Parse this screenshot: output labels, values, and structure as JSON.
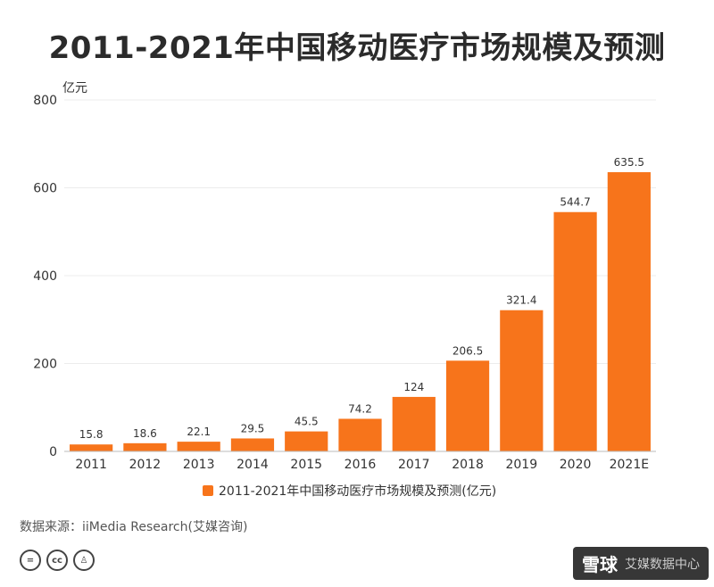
{
  "chart_data": {
    "type": "bar",
    "title": "2011-2021年中国移动医疗市场规模及预测",
    "ylabel": "亿元",
    "categories": [
      "2011",
      "2012",
      "2013",
      "2014",
      "2015",
      "2016",
      "2017",
      "2018",
      "2019",
      "2020",
      "2021E"
    ],
    "series": [
      {
        "name": "2011-2021年中国移动医疗市场规模及预测(亿元)",
        "values": [
          15.8,
          18.6,
          22.1,
          29.5,
          45.5,
          74.2,
          124,
          206.5,
          321.4,
          544.7,
          635.5
        ]
      }
    ],
    "value_labels": [
      "15.8",
      "18.6",
      "22.1",
      "29.5",
      "45.5",
      "74.2",
      "124",
      "206.5",
      "321.4",
      "544.7",
      "635.5"
    ],
    "ylim": [
      0,
      800
    ],
    "yticks": [
      0,
      200,
      400,
      600,
      800
    ],
    "grid": true,
    "legend": "bottom-center",
    "bar_color": "#f7741b"
  },
  "source": "数据来源：iiMedia Research(艾媒咨询)",
  "cc_icons": [
    {
      "name": "equals-icon",
      "glyph": "="
    },
    {
      "name": "cc-icon",
      "glyph": "cc"
    },
    {
      "name": "person-icon",
      "glyph": "♙"
    }
  ],
  "watermark": {
    "text": "雪球",
    "sub": "艾媒数据中心"
  }
}
